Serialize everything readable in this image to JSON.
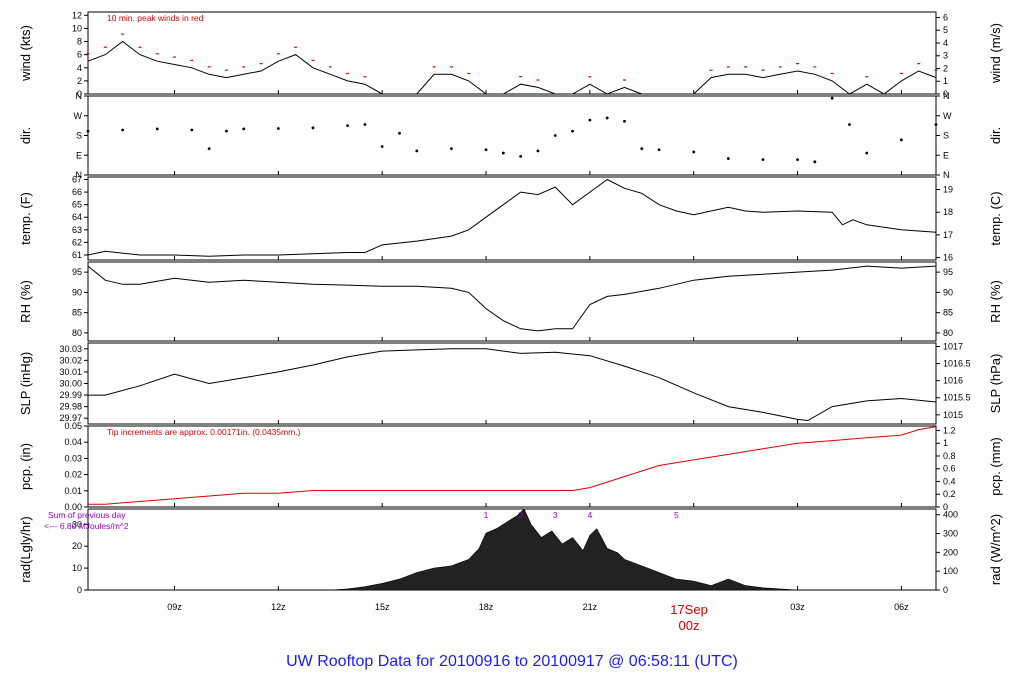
{
  "footer": "UW Rooftop Data for 20100916  to  20100917 @ 06:58:11  (UTC)",
  "colors": {
    "trace": "#000000",
    "red": "#e00000",
    "purple": "#9900cc",
    "footer": "#1a1aff",
    "fill": "#222222"
  },
  "x_axis": {
    "range_hours": [
      6.5,
      31.0
    ],
    "ticks": [
      {
        "h": 9,
        "label": "09z"
      },
      {
        "h": 12,
        "label": "12z"
      },
      {
        "h": 15,
        "label": "15z"
      },
      {
        "h": 18,
        "label": "18z"
      },
      {
        "h": 21,
        "label": "21z"
      },
      {
        "h": 24,
        "label": ""
      },
      {
        "h": 27,
        "label": "03z"
      },
      {
        "h": 30,
        "label": "06z"
      }
    ],
    "day_marker": {
      "h": 24,
      "date": "17Sep",
      "time": "00z"
    }
  },
  "panels": {
    "wind": {
      "ylabel_left": "wind (kts)",
      "ylabel_right": "wind (m/s)",
      "yrange": [
        0,
        12.5
      ],
      "left_ticks": [
        0,
        2,
        4,
        6,
        8,
        10,
        12
      ],
      "right_ticks": [
        0,
        1,
        2,
        3,
        4,
        5,
        6
      ],
      "note": "10 min. peak winds in red"
    },
    "dir": {
      "ylabel_left": "dir.",
      "ylabel_right": "dir.",
      "yrange": [
        0,
        360
      ],
      "left_ticks": [
        {
          "v": 0,
          "l": "N"
        },
        {
          "v": 90,
          "l": "E"
        },
        {
          "v": 180,
          "l": "S"
        },
        {
          "v": 270,
          "l": "W"
        },
        {
          "v": 360,
          "l": "N"
        }
      ],
      "right_ticks": [
        {
          "v": 0,
          "l": "N"
        },
        {
          "v": 90,
          "l": "E"
        },
        {
          "v": 180,
          "l": "S"
        },
        {
          "v": 270,
          "l": "W"
        },
        {
          "v": 360,
          "l": "N"
        }
      ]
    },
    "temp": {
      "ylabel_left": "temp. (F)",
      "ylabel_right": "temp. (C)",
      "yrange": [
        60.6,
        67.2
      ],
      "left_ticks": [
        61,
        62,
        63,
        64,
        65,
        66,
        67
      ],
      "right_ticks": [
        16,
        17,
        18,
        19
      ]
    },
    "rh": {
      "ylabel_left": "RH (%)",
      "ylabel_right": "RH (%)",
      "yrange": [
        78,
        97.5
      ],
      "left_ticks": [
        80,
        85,
        90,
        95
      ],
      "right_ticks": [
        80,
        85,
        90,
        95
      ]
    },
    "slp": {
      "ylabel_left": "SLP (inHg)",
      "ylabel_right": "SLP (hPa)",
      "yrange": [
        29.965,
        30.035
      ],
      "left_ticks": [
        "29.97",
        "29.98",
        "29.99",
        "30.00",
        "30.01",
        "30.02",
        "30.03"
      ],
      "right_ticks": [
        "1015",
        "1015.5",
        "1016",
        "1016.5",
        "1017"
      ]
    },
    "pcp": {
      "ylabel_left": "pcp. (in)",
      "ylabel_right": "pcp. (mm)",
      "yrange": [
        0,
        0.05
      ],
      "left_ticks": [
        "0.00",
        "0.01",
        "0.02",
        "0.03",
        "0.04",
        "0.05"
      ],
      "right_ticks": [
        "0",
        "0.2",
        "0.4",
        "0.6",
        "0.8",
        "1",
        "1.2"
      ],
      "note": "Tip increments are approx. 0.00171in. (0.0435mm.)"
    },
    "rad": {
      "ylabel_left": "rad(Lgly/hr)",
      "ylabel_right": "rad (W/m^2)",
      "yrange": [
        0,
        37
      ],
      "left_ticks": [
        0,
        10,
        20,
        30
      ],
      "right_ticks": [
        0,
        100,
        200,
        300,
        400
      ],
      "note_line1": "Sum of previous day",
      "note_line2": "<--- 6.80 MJoules/m^2",
      "markers": [
        {
          "h": 18.0,
          "l": "1"
        },
        {
          "h": 19.0,
          "l": "2"
        },
        {
          "h": 20.0,
          "l": "3"
        },
        {
          "h": 21.0,
          "l": "4"
        },
        {
          "h": 23.5,
          "l": "5"
        }
      ]
    }
  },
  "chart_data": [
    {
      "type": "line",
      "ylabel": "wind (kts)",
      "ylim": [
        0,
        12.5
      ],
      "x": [
        6.5,
        7.0,
        7.5,
        8.0,
        8.5,
        9.0,
        9.5,
        10.0,
        10.5,
        11.0,
        11.5,
        12.0,
        12.5,
        13.0,
        13.5,
        14.0,
        14.5,
        15.0,
        16.0,
        16.5,
        17.0,
        17.5,
        18.0,
        18.5,
        19.0,
        19.5,
        20.0,
        20.5,
        21.0,
        21.5,
        22.0,
        22.5,
        23.0,
        23.5,
        24.0,
        24.5,
        25.0,
        25.5,
        26.0,
        26.5,
        27.0,
        27.5,
        28.0,
        28.5,
        29.0,
        29.5,
        30.0,
        30.5,
        31.0
      ],
      "y": [
        5,
        6,
        8,
        6,
        5,
        4.5,
        4,
        3,
        2.5,
        3,
        3.5,
        5,
        6,
        4,
        3,
        2,
        1.5,
        0,
        0,
        3,
        3,
        2,
        0,
        0,
        1.5,
        1,
        0,
        0,
        1.5,
        0,
        1,
        0,
        0,
        0,
        0,
        2.5,
        3,
        3,
        2.5,
        3,
        3.5,
        3,
        2,
        0,
        1.5,
        0,
        2,
        3.5,
        2.5
      ]
    },
    {
      "type": "scatter",
      "ylabel": "dir.",
      "ylim": [
        0,
        360
      ],
      "x": [
        6.5,
        7.5,
        8.5,
        9.5,
        10.0,
        10.5,
        11.0,
        12.0,
        13.0,
        14.0,
        14.5,
        15.0,
        15.5,
        16.0,
        17.0,
        18.0,
        18.5,
        19.0,
        19.5,
        20.0,
        20.5,
        21.0,
        21.5,
        22.0,
        22.5,
        23.0,
        24.0,
        25.0,
        26.0,
        27.0,
        27.5,
        28.0,
        28.5,
        29.0,
        30.0,
        31.0
      ],
      "y": [
        200,
        205,
        210,
        205,
        120,
        200,
        210,
        212,
        215,
        225,
        230,
        130,
        190,
        110,
        120,
        115,
        100,
        85,
        110,
        180,
        200,
        250,
        260,
        245,
        120,
        115,
        105,
        75,
        70,
        70,
        60,
        350,
        230,
        100,
        160,
        230
      ]
    },
    {
      "type": "line",
      "ylabel": "temp. (F)",
      "ylim": [
        60.6,
        67.2
      ],
      "x": [
        6.5,
        7.0,
        8.0,
        9.0,
        10.0,
        11.0,
        12.0,
        13.0,
        14.0,
        14.5,
        15.0,
        16.0,
        17.0,
        17.5,
        18.0,
        18.5,
        19.0,
        19.5,
        20.0,
        20.5,
        21.0,
        21.5,
        22.0,
        22.5,
        23.0,
        23.5,
        24.0,
        24.5,
        25.0,
        25.5,
        26.0,
        27.0,
        28.0,
        28.3,
        28.6,
        29.0,
        30.0,
        31.0
      ],
      "y": [
        61.0,
        61.3,
        61.0,
        61.0,
        60.9,
        61.0,
        61.0,
        61.1,
        61.2,
        61.2,
        61.8,
        62.1,
        62.5,
        63.0,
        64.0,
        65.0,
        66.0,
        65.8,
        66.4,
        65.0,
        66.0,
        67.0,
        66.3,
        65.9,
        65.0,
        64.5,
        64.2,
        64.5,
        64.8,
        64.5,
        64.4,
        64.5,
        64.4,
        63.4,
        63.8,
        63.4,
        63.0,
        62.8
      ]
    },
    {
      "type": "line",
      "ylabel": "RH (%)",
      "ylim": [
        78,
        97.5
      ],
      "x": [
        6.5,
        7.0,
        7.5,
        8.0,
        9.0,
        10.0,
        11.0,
        12.0,
        13.0,
        14.0,
        15.0,
        16.0,
        17.0,
        17.5,
        18.0,
        18.5,
        19.0,
        19.5,
        20.0,
        20.5,
        21.0,
        21.5,
        22.0,
        23.0,
        24.0,
        25.0,
        26.0,
        27.0,
        28.0,
        29.0,
        30.0,
        31.0
      ],
      "y": [
        96.5,
        93.0,
        92.0,
        92.0,
        93.5,
        92.5,
        93.0,
        92.5,
        92.0,
        91.8,
        91.5,
        91.5,
        91.0,
        90.0,
        86.0,
        83.0,
        81.0,
        80.5,
        81.0,
        81.0,
        87.0,
        89.0,
        89.5,
        91.0,
        93.0,
        94.0,
        94.5,
        95.0,
        95.5,
        96.5,
        96.0,
        96.5
      ]
    },
    {
      "type": "line",
      "ylabel": "SLP (inHg)",
      "ylim": [
        29.965,
        30.035
      ],
      "x": [
        6.5,
        7.0,
        8.0,
        9.0,
        10.0,
        11.0,
        12.0,
        13.0,
        14.0,
        15.0,
        16.0,
        17.0,
        18.0,
        19.0,
        20.0,
        21.0,
        22.0,
        23.0,
        24.0,
        25.0,
        26.0,
        27.0,
        27.3,
        28.0,
        29.0,
        30.0,
        31.0
      ],
      "y": [
        29.99,
        29.99,
        29.998,
        30.008,
        30.0,
        30.005,
        30.01,
        30.016,
        30.023,
        30.028,
        30.029,
        30.03,
        30.03,
        30.026,
        30.027,
        30.024,
        30.015,
        30.005,
        29.992,
        29.98,
        29.975,
        29.969,
        29.968,
        29.98,
        29.985,
        29.987,
        29.984
      ]
    },
    {
      "type": "line",
      "ylabel": "pcp. (in)",
      "ylim": [
        0,
        0.05
      ],
      "x": [
        6.5,
        7.0,
        8.0,
        9.0,
        10.0,
        11.0,
        12.0,
        13.0,
        14.0,
        15.0,
        16.0,
        17.0,
        18.0,
        19.0,
        20.0,
        20.5,
        21.0,
        21.5,
        22.0,
        22.5,
        23.0,
        24.0,
        25.0,
        26.0,
        27.0,
        28.0,
        29.0,
        30.0,
        30.5,
        31.0
      ],
      "y": [
        0.0017,
        0.0017,
        0.0034,
        0.0051,
        0.0068,
        0.0085,
        0.0085,
        0.0102,
        0.0102,
        0.0102,
        0.0102,
        0.0102,
        0.0102,
        0.0102,
        0.0102,
        0.0102,
        0.012,
        0.0154,
        0.0188,
        0.0222,
        0.0256,
        0.0291,
        0.0325,
        0.0359,
        0.0393,
        0.041,
        0.0427,
        0.0444,
        0.0478,
        0.0496
      ]
    },
    {
      "type": "area",
      "ylabel": "rad(Lgly/hr)",
      "ylim": [
        0,
        37
      ],
      "x": [
        6.5,
        13.5,
        14.0,
        14.5,
        15.0,
        15.5,
        16.0,
        16.5,
        17.0,
        17.5,
        17.8,
        18.0,
        18.3,
        18.6,
        18.9,
        19.1,
        19.3,
        19.6,
        19.9,
        20.2,
        20.5,
        20.8,
        21.0,
        21.2,
        21.5,
        21.8,
        22.0,
        22.5,
        23.0,
        23.5,
        24.0,
        24.5,
        25.0,
        25.5,
        26.0,
        26.5,
        27.0,
        31.0
      ],
      "y": [
        0,
        0,
        0.5,
        1.5,
        3,
        5,
        8,
        10,
        11,
        14,
        19,
        26,
        28,
        31,
        34,
        37,
        30,
        24,
        27,
        21,
        24,
        18,
        25,
        28,
        19,
        17,
        14,
        11,
        8,
        5,
        4,
        2,
        5,
        2,
        1,
        0.5,
        0,
        0
      ]
    }
  ]
}
